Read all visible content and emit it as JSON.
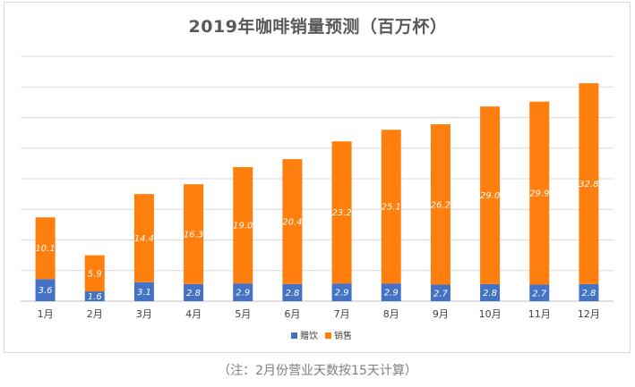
{
  "chart_data": {
    "type": "bar",
    "stacked": true,
    "title": "2019年咖啡销量预测（百万杯）",
    "categories": [
      "1月",
      "2月",
      "3月",
      "4月",
      "5月",
      "6月",
      "7月",
      "8月",
      "9月",
      "10月",
      "11月",
      "12月"
    ],
    "series": [
      {
        "name": "赠饮",
        "color": "#4472c4",
        "values": [
          3.6,
          1.6,
          3.1,
          2.8,
          2.9,
          2.8,
          2.9,
          2.9,
          2.7,
          2.8,
          2.7,
          2.8
        ]
      },
      {
        "name": "销售",
        "color": "#ff7f0e",
        "values": [
          10.1,
          5.9,
          14.4,
          16.3,
          19.0,
          20.4,
          23.2,
          25.1,
          26.2,
          29.0,
          29.9,
          32.8
        ]
      }
    ],
    "ylim": [
      0,
      40
    ],
    "grid": true,
    "legend": "bottom"
  },
  "footnote": "（注：2月份营业天数按15天计算）"
}
